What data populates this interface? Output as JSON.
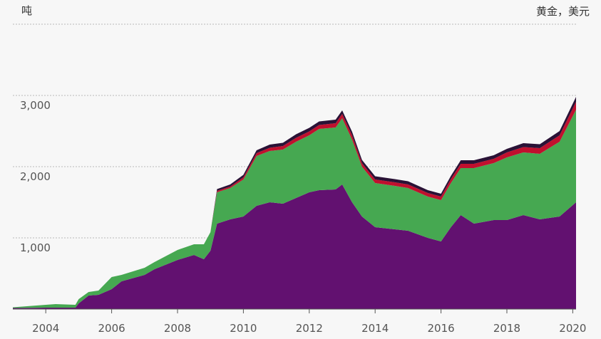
{
  "chart_data": {
    "type": "area",
    "stacked": true,
    "unit_label": "吨",
    "note": "黄金，美元",
    "x_ticks": [
      "2004",
      "2006",
      "2008",
      "2010",
      "2012",
      "2014",
      "2016",
      "2018",
      "2020"
    ],
    "y_ticks": [
      "1,000",
      "2,000",
      "3,000"
    ],
    "xlim": [
      2003.0,
      2020.1
    ],
    "ylim": [
      0,
      4000
    ],
    "grid": true,
    "colors": {
      "purple": "#621170",
      "green": "#46a851",
      "red": "#c0102e",
      "dark": "#2a1236",
      "grid": "#b8b8b8",
      "background": "#f7f7f7"
    },
    "x": [
      2003.0,
      2004.0,
      2004.3,
      2004.9,
      2005.0,
      2005.3,
      2005.6,
      2006.0,
      2006.3,
      2007.0,
      2007.3,
      2008.0,
      2008.5,
      2008.8,
      2009.0,
      2009.2,
      2009.6,
      2010.0,
      2010.4,
      2010.8,
      2011.2,
      2011.6,
      2012.0,
      2012.3,
      2012.8,
      2013.0,
      2013.3,
      2013.6,
      2014.0,
      2014.6,
      2015.0,
      2015.6,
      2016.0,
      2016.3,
      2016.6,
      2017.0,
      2017.6,
      2018.0,
      2018.5,
      2019.0,
      2019.6,
      2020.1
    ],
    "series": [
      {
        "values": [
          15,
          20,
          20,
          20,
          80,
          190,
          200,
          280,
          390,
          480,
          560,
          690,
          760,
          700,
          820,
          1200,
          1260,
          1300,
          1450,
          1500,
          1480,
          1560,
          1640,
          1670,
          1680,
          1750,
          1500,
          1300,
          1150,
          1120,
          1100,
          1000,
          950,
          1150,
          1320,
          1200,
          1250,
          1250,
          1320,
          1260,
          1300,
          1500
        ]
      },
      {
        "values": [
          10,
          40,
          50,
          40,
          60,
          50,
          60,
          170,
          90,
          100,
          100,
          140,
          150,
          210,
          260,
          440,
          440,
          520,
          700,
          720,
          760,
          790,
          800,
          860,
          870,
          930,
          880,
          700,
          620,
          610,
          600,
          580,
          580,
          620,
          660,
          780,
          800,
          880,
          880,
          920,
          1050,
          1300
        ]
      },
      {
        "values": [
          0,
          0,
          0,
          0,
          0,
          0,
          0,
          0,
          0,
          0,
          0,
          0,
          0,
          0,
          0,
          20,
          20,
          30,
          40,
          45,
          50,
          55,
          55,
          55,
          60,
          60,
          60,
          50,
          50,
          50,
          50,
          50,
          50,
          55,
          60,
          60,
          60,
          70,
          75,
          80,
          90,
          110
        ]
      },
      {
        "values": [
          0,
          0,
          0,
          0,
          0,
          0,
          0,
          0,
          0,
          0,
          0,
          0,
          0,
          0,
          0,
          25,
          30,
          35,
          40,
          45,
          45,
          50,
          50,
          50,
          50,
          50,
          50,
          45,
          45,
          45,
          45,
          40,
          40,
          45,
          50,
          50,
          50,
          50,
          55,
          55,
          60,
          70
        ]
      }
    ]
  }
}
